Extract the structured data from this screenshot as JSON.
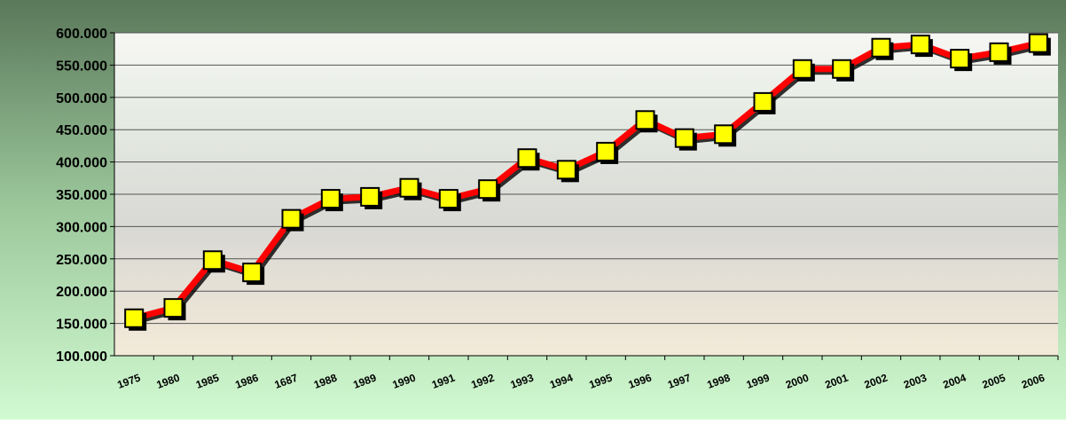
{
  "chart_data": {
    "type": "line",
    "categories": [
      "1975",
      "1980",
      "1985",
      "1986",
      "1687",
      "1988",
      "1989",
      "1990",
      "1991",
      "1992",
      "1993",
      "1994",
      "1995",
      "1996",
      "1997",
      "1998",
      "1999",
      "2000",
      "2001",
      "2002",
      "2003",
      "2004",
      "2005",
      "2006"
    ],
    "series": [
      {
        "color": "#ff0000",
        "values": [
          158000,
          174000,
          248000,
          229000,
          312000,
          343000,
          346000,
          360000,
          343000,
          358000,
          406000,
          388000,
          416000,
          465000,
          437000,
          443000,
          493000,
          544000,
          544000,
          577000,
          582000,
          560000,
          570000,
          584000
        ]
      }
    ],
    "marker_color": "#ffff00",
    "ylim": [
      100000,
      600000
    ],
    "yticks": [
      {
        "value": 100000,
        "label": "100.000"
      },
      {
        "value": 150000,
        "label": "150.000"
      },
      {
        "value": 200000,
        "label": "200.000"
      },
      {
        "value": 250000,
        "label": "250.000"
      },
      {
        "value": 300000,
        "label": "300.000"
      },
      {
        "value": 350000,
        "label": "350.000"
      },
      {
        "value": 400000,
        "label": "400.000"
      },
      {
        "value": 450000,
        "label": "450.000"
      },
      {
        "value": 500000,
        "label": "500.000"
      },
      {
        "value": 550000,
        "label": "550.000"
      },
      {
        "value": 600000,
        "label": "600.000"
      }
    ],
    "grid": true
  }
}
